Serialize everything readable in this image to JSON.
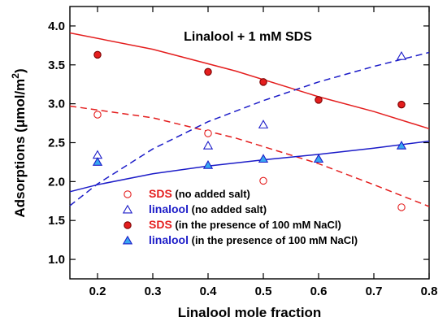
{
  "chart_data": {
    "type": "scatter",
    "title": "Linalool + 1 mM SDS",
    "xlabel": "Linalool mole fraction",
    "ylabel_main": "Adsorptions (μmol/m",
    "ylabel_sup": "2",
    "ylabel_end": ")",
    "xlim": [
      0.15,
      0.8
    ],
    "ylim": [
      0.75,
      4.25
    ],
    "xticks": [
      "0.2",
      "0.3",
      "0.4",
      "0.5",
      "0.6",
      "0.7",
      "0.8"
    ],
    "yticks": [
      "1.0",
      "1.5",
      "2.0",
      "2.5",
      "3.0",
      "3.5",
      "4.0"
    ],
    "grid": false,
    "series": [
      {
        "name": "SDS (no added salt)",
        "legend_colored": "SDS",
        "legend_rest": " (no added salt)",
        "marker": "circle-open",
        "color": "#e41e1e",
        "x": [
          0.2,
          0.4,
          0.5,
          0.75
        ],
        "y": [
          2.86,
          2.62,
          2.01,
          1.67
        ]
      },
      {
        "name": "linalool (no added salt)",
        "legend_colored": "linalool",
        "legend_rest": " (no added salt)",
        "marker": "triangle-open",
        "color": "#1c1cc8",
        "x": [
          0.2,
          0.4,
          0.5,
          0.75
        ],
        "y": [
          2.34,
          2.46,
          2.73,
          3.61
        ]
      },
      {
        "name": "SDS (in the presence of 100 mM NaCl)",
        "legend_colored": "SDS",
        "legend_rest": " (in the presence of 100 mM NaCl)",
        "marker": "circle-filled",
        "color": "#e41e1e",
        "x": [
          0.2,
          0.4,
          0.5,
          0.6,
          0.75
        ],
        "y": [
          3.63,
          3.41,
          3.28,
          3.05,
          2.99
        ]
      },
      {
        "name": "linalool (in the presence of 100 mM NaCl)",
        "legend_colored": "linalool",
        "legend_rest": " (in the presence of 100 mM NaCl)",
        "marker": "triangle-filled",
        "color": "#1c1cc8",
        "fill": "#39a7f0",
        "x": [
          0.2,
          0.4,
          0.5,
          0.6,
          0.75
        ],
        "y": [
          2.25,
          2.21,
          2.29,
          2.29,
          2.46
        ]
      }
    ],
    "fit_curves": [
      {
        "color": "#e41e1e",
        "dash": "solid",
        "x": [
          0.15,
          0.3,
          0.45,
          0.6,
          0.7,
          0.8
        ],
        "y": [
          3.91,
          3.7,
          3.42,
          3.09,
          2.9,
          2.68
        ]
      },
      {
        "color": "#e41e1e",
        "dash": "dashed",
        "x": [
          0.15,
          0.3,
          0.45,
          0.6,
          0.7,
          0.8
        ],
        "y": [
          2.97,
          2.82,
          2.56,
          2.23,
          1.96,
          1.68
        ]
      },
      {
        "color": "#1c1cc8",
        "dash": "dashed",
        "x": [
          0.15,
          0.2,
          0.3,
          0.4,
          0.5,
          0.6,
          0.7,
          0.8
        ],
        "y": [
          1.69,
          1.97,
          2.42,
          2.77,
          3.04,
          3.28,
          3.48,
          3.66
        ]
      },
      {
        "color": "#1c1cc8",
        "dash": "solid",
        "x": [
          0.15,
          0.2,
          0.3,
          0.4,
          0.5,
          0.6,
          0.7,
          0.8
        ],
        "y": [
          1.87,
          1.96,
          2.1,
          2.2,
          2.28,
          2.35,
          2.43,
          2.52
        ]
      }
    ]
  }
}
